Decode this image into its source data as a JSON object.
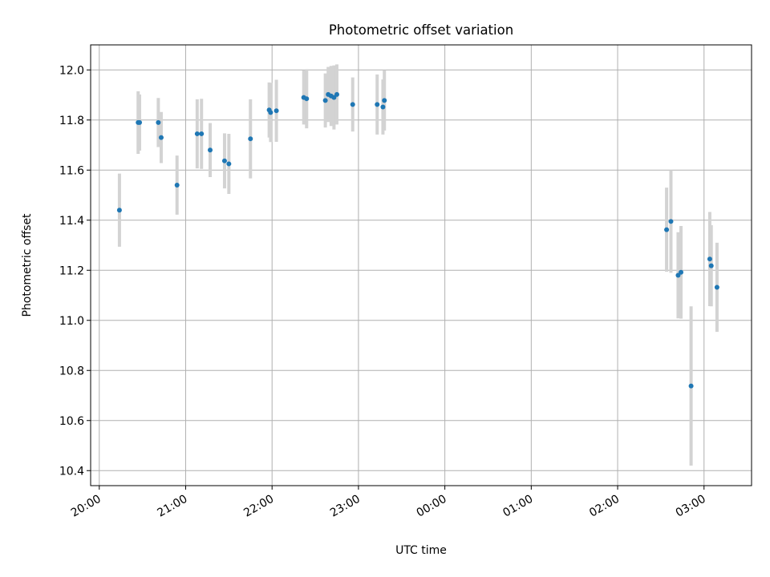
{
  "chart_data": {
    "type": "scatter",
    "title": "Photometric offset variation",
    "xlabel": "UTC time",
    "ylabel": "Photometric offset",
    "x_tick_labels": [
      "20:00",
      "21:00",
      "22:00",
      "23:00",
      "00:00",
      "01:00",
      "02:00",
      "03:00"
    ],
    "x_ticks_hours": [
      0,
      1,
      2,
      3,
      4,
      5,
      6,
      7
    ],
    "x_tick_label_rotation_deg": 30,
    "y_ticks": [
      10.4,
      10.6,
      10.8,
      11.0,
      11.2,
      11.4,
      11.6,
      11.8,
      12.0
    ],
    "y_tick_labels": [
      "10.4",
      "10.6",
      "10.8",
      "11.0",
      "11.2",
      "11.4",
      "11.6",
      "11.8",
      "12.0"
    ],
    "xlim_hours": [
      -0.1,
      7.55
    ],
    "ylim": [
      10.34,
      12.1
    ],
    "grid": true,
    "point_color": "#1f77b4",
    "errorbar_color": "#d3d3d3",
    "points": [
      {
        "time": "20:14",
        "y": 11.44,
        "err": 0.146
      },
      {
        "time": "20:27",
        "y": 11.79,
        "err": 0.125
      },
      {
        "time": "20:28",
        "y": 11.79,
        "err": 0.112
      },
      {
        "time": "20:41",
        "y": 11.79,
        "err": 0.098
      },
      {
        "time": "20:43",
        "y": 11.73,
        "err": 0.102
      },
      {
        "time": "20:54",
        "y": 11.54,
        "err": 0.118
      },
      {
        "time": "21:08",
        "y": 11.745,
        "err": 0.138
      },
      {
        "time": "21:11",
        "y": 11.745,
        "err": 0.14
      },
      {
        "time": "21:17",
        "y": 11.68,
        "err": 0.108
      },
      {
        "time": "21:27",
        "y": 11.637,
        "err": 0.11
      },
      {
        "time": "21:30",
        "y": 11.625,
        "err": 0.12
      },
      {
        "time": "21:45",
        "y": 11.725,
        "err": 0.158
      },
      {
        "time": "21:58",
        "y": 11.84,
        "err": 0.11
      },
      {
        "time": "21:59",
        "y": 11.83,
        "err": 0.118
      },
      {
        "time": "22:03",
        "y": 11.837,
        "err": 0.124
      },
      {
        "time": "22:22",
        "y": 11.89,
        "err": 0.108
      },
      {
        "time": "22:24",
        "y": 11.885,
        "err": 0.118
      },
      {
        "time": "22:37",
        "y": 11.878,
        "err": 0.108
      },
      {
        "time": "22:39",
        "y": 11.902,
        "err": 0.11
      },
      {
        "time": "22:41",
        "y": 11.896,
        "err": 0.12
      },
      {
        "time": "22:43",
        "y": 11.89,
        "err": 0.128
      },
      {
        "time": "22:45",
        "y": 11.902,
        "err": 0.12
      },
      {
        "time": "22:56",
        "y": 11.862,
        "err": 0.108
      },
      {
        "time": "23:13",
        "y": 11.862,
        "err": 0.12
      },
      {
        "time": "23:17",
        "y": 11.852,
        "err": 0.11
      },
      {
        "time": "23:18",
        "y": 11.878,
        "err": 0.12
      },
      {
        "time": "02:34",
        "y": 11.362,
        "err": 0.168
      },
      {
        "time": "02:37",
        "y": 11.395,
        "err": 0.205
      },
      {
        "time": "02:42",
        "y": 11.18,
        "err": 0.172
      },
      {
        "time": "02:44",
        "y": 11.192,
        "err": 0.185
      },
      {
        "time": "02:51",
        "y": 10.738,
        "err": 0.318
      },
      {
        "time": "03:04",
        "y": 11.245,
        "err": 0.188
      },
      {
        "time": "03:05",
        "y": 11.218,
        "err": 0.162
      },
      {
        "time": "03:09",
        "y": 11.132,
        "err": 0.178
      }
    ]
  }
}
